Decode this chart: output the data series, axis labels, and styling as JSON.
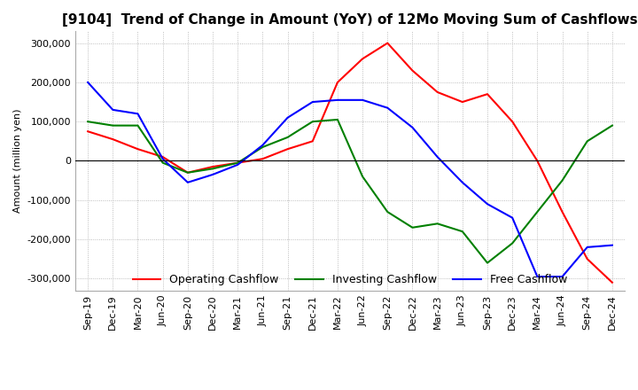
{
  "title": "[9104]  Trend of Change in Amount (YoY) of 12Mo Moving Sum of Cashflows",
  "ylabel": "Amount (million yen)",
  "ylim": [
    -330000,
    330000
  ],
  "yticks": [
    -300000,
    -200000,
    -100000,
    0,
    100000,
    200000,
    300000
  ],
  "x_labels": [
    "Sep-19",
    "Dec-19",
    "Mar-20",
    "Jun-20",
    "Sep-20",
    "Dec-20",
    "Mar-21",
    "Jun-21",
    "Sep-21",
    "Dec-21",
    "Mar-22",
    "Jun-22",
    "Sep-22",
    "Dec-22",
    "Mar-23",
    "Jun-23",
    "Sep-23",
    "Dec-23",
    "Mar-24",
    "Jun-24",
    "Sep-24",
    "Dec-24"
  ],
  "operating": [
    75000,
    55000,
    30000,
    10000,
    -30000,
    -15000,
    -5000,
    5000,
    30000,
    50000,
    200000,
    260000,
    300000,
    230000,
    175000,
    150000,
    170000,
    100000,
    0,
    -130000,
    -250000,
    -310000
  ],
  "investing": [
    100000,
    90000,
    90000,
    -5000,
    -30000,
    -20000,
    -5000,
    35000,
    60000,
    100000,
    105000,
    -40000,
    -130000,
    -170000,
    -160000,
    -180000,
    -260000,
    -210000,
    -130000,
    -50000,
    50000,
    90000
  ],
  "free": [
    200000,
    130000,
    120000,
    5000,
    -55000,
    -35000,
    -10000,
    40000,
    110000,
    150000,
    155000,
    155000,
    135000,
    85000,
    10000,
    -55000,
    -110000,
    -145000,
    -295000,
    -295000,
    -220000,
    -215000
  ],
  "operating_color": "#ff0000",
  "investing_color": "#008000",
  "free_color": "#0000ff",
  "background_color": "#ffffff",
  "grid_color": "#aaaaaa",
  "title_fontsize": 11,
  "axis_fontsize": 8,
  "legend_fontsize": 9
}
